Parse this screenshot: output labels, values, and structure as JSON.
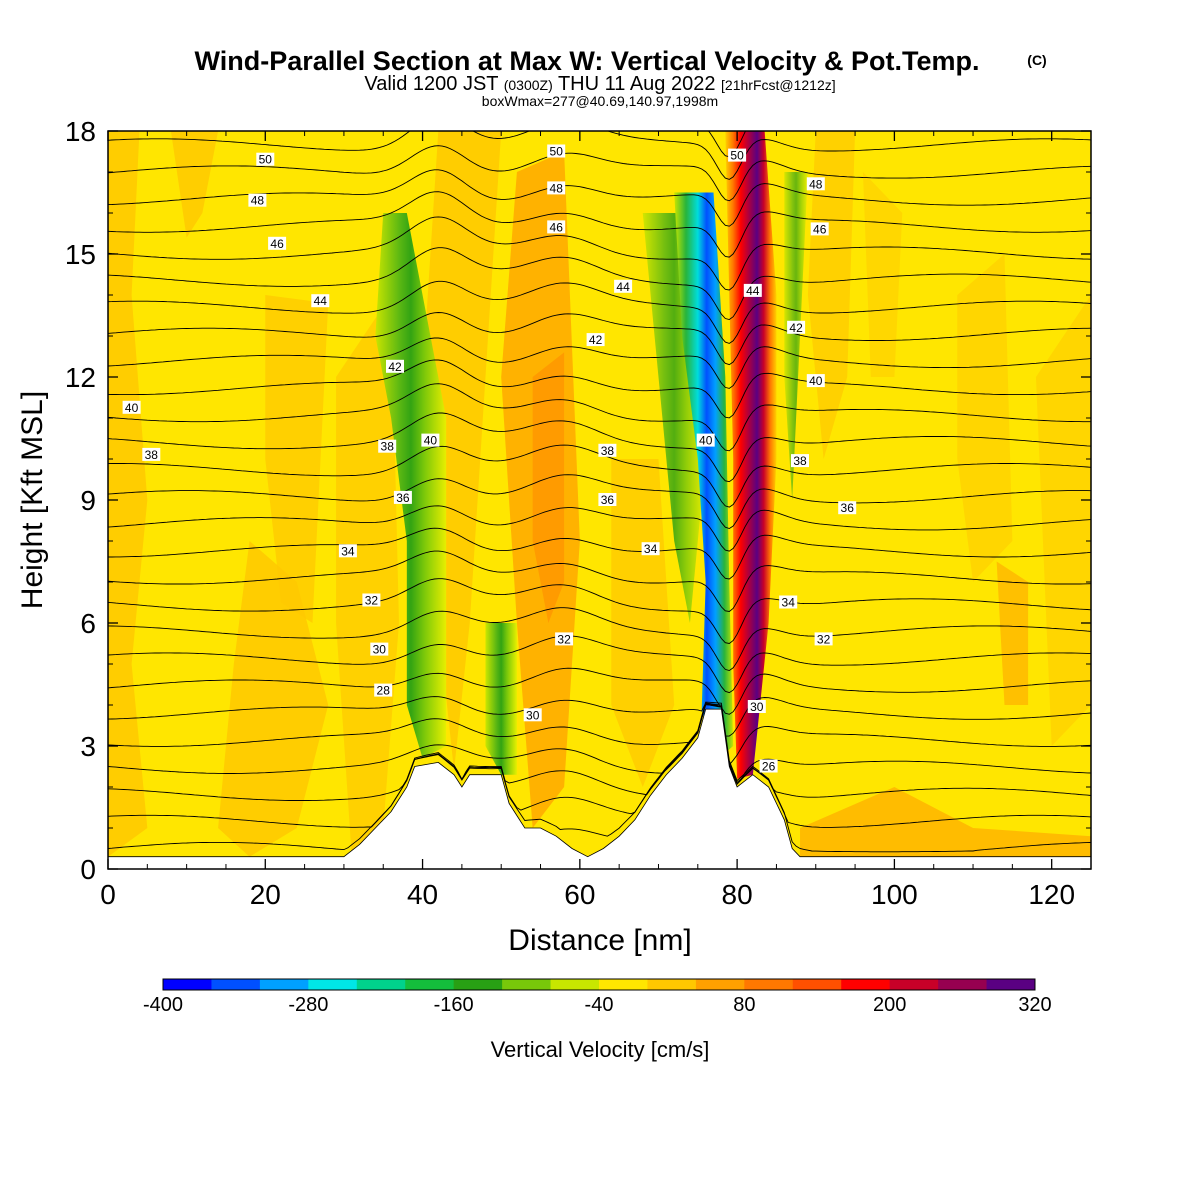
{
  "chart_data": {
    "type": "heatmap",
    "title": "Wind-Parallel Section at Max W: Vertical Velocity & Pot.Temp.",
    "title_tag": "(C)",
    "subtitle_line1": {
      "part1": "Valid 1200 JST",
      "part2": "(0300Z)",
      "part3": "THU 11 Aug 2022",
      "part4": "[21hrFcst@1212z]"
    },
    "subtitle_line2": "boxWmax=277@40.69,140.97,1998m",
    "xlabel": "Distance [nm]",
    "ylabel": "Height [Kft MSL]",
    "xlim": [
      0,
      125
    ],
    "ylim": [
      0,
      18
    ],
    "x_ticks": [
      "0",
      "20",
      "40",
      "60",
      "80",
      "100",
      "120"
    ],
    "y_ticks": [
      "0",
      "3",
      "6",
      "9",
      "12",
      "15",
      "18"
    ],
    "colorbar": {
      "title": "Vertical Velocity [cm/s]",
      "tick_labels": [
        "-400",
        "-280",
        "-160",
        "-40",
        "80",
        "200",
        "320"
      ],
      "range": [
        -400,
        320
      ],
      "colors": [
        "#0000ff",
        "#0050ff",
        "#00a0ff",
        "#00e6e6",
        "#00d28c",
        "#14be3c",
        "#28a014",
        "#78c80a",
        "#c8e600",
        "#ffe600",
        "#ffc800",
        "#ffa000",
        "#ff7800",
        "#ff5000",
        "#ff0000",
        "#c80028",
        "#960050",
        "#5a0082"
      ]
    },
    "terrain": [
      [
        0,
        0.3
      ],
      [
        30,
        0.3
      ],
      [
        32,
        0.6
      ],
      [
        34,
        1.0
      ],
      [
        36,
        1.4
      ],
      [
        38,
        2.0
      ],
      [
        39,
        2.5
      ],
      [
        42,
        2.6
      ],
      [
        44,
        2.3
      ],
      [
        45,
        2.0
      ],
      [
        46,
        2.3
      ],
      [
        50,
        2.3
      ],
      [
        51,
        1.6
      ],
      [
        53,
        1.0
      ],
      [
        55,
        1.0
      ],
      [
        57,
        0.8
      ],
      [
        59,
        0.5
      ],
      [
        61,
        0.3
      ],
      [
        63,
        0.5
      ],
      [
        65,
        0.8
      ],
      [
        67,
        1.2
      ],
      [
        69,
        1.8
      ],
      [
        71,
        2.3
      ],
      [
        73,
        2.7
      ],
      [
        75,
        3.2
      ],
      [
        76,
        3.9
      ],
      [
        78,
        3.9
      ],
      [
        79,
        2.5
      ],
      [
        80,
        2.0
      ],
      [
        82,
        2.3
      ],
      [
        84,
        2.0
      ],
      [
        86,
        1.2
      ],
      [
        87,
        0.5
      ],
      [
        88,
        0.3
      ],
      [
        125,
        0.3
      ]
    ],
    "theta_contours": {
      "levels": [
        24,
        25,
        26,
        27,
        28,
        29,
        30,
        31,
        32,
        33,
        34,
        35,
        36,
        37,
        38,
        39,
        40,
        41,
        42,
        43,
        44,
        45,
        46,
        47,
        48,
        49,
        50,
        51
      ],
      "labels": [
        {
          "text": "50",
          "x": 20,
          "y": 17.3
        },
        {
          "text": "48",
          "x": 19,
          "y": 16.3
        },
        {
          "text": "46",
          "x": 21.5,
          "y": 15.25
        },
        {
          "text": "44",
          "x": 27,
          "y": 13.85
        },
        {
          "text": "40",
          "x": 3,
          "y": 11.25
        },
        {
          "text": "38",
          "x": 5.5,
          "y": 10.1
        },
        {
          "text": "42",
          "x": 36.5,
          "y": 12.25
        },
        {
          "text": "40",
          "x": 41,
          "y": 10.45
        },
        {
          "text": "38",
          "x": 35.5,
          "y": 10.3
        },
        {
          "text": "36",
          "x": 37.5,
          "y": 9.05
        },
        {
          "text": "34",
          "x": 30.5,
          "y": 7.75
        },
        {
          "text": "32",
          "x": 33.5,
          "y": 6.55
        },
        {
          "text": "30",
          "x": 34.5,
          "y": 5.35
        },
        {
          "text": "28",
          "x": 35,
          "y": 4.35
        },
        {
          "text": "50",
          "x": 57,
          "y": 17.5
        },
        {
          "text": "48",
          "x": 57,
          "y": 16.6
        },
        {
          "text": "46",
          "x": 57,
          "y": 15.65
        },
        {
          "text": "44",
          "x": 65.5,
          "y": 14.2
        },
        {
          "text": "42",
          "x": 62,
          "y": 12.9
        },
        {
          "text": "38",
          "x": 63.5,
          "y": 10.2
        },
        {
          "text": "36",
          "x": 63.5,
          "y": 9.0
        },
        {
          "text": "34",
          "x": 69,
          "y": 7.8
        },
        {
          "text": "32",
          "x": 58,
          "y": 5.6
        },
        {
          "text": "30",
          "x": 54,
          "y": 3.75
        },
        {
          "text": "50",
          "x": 80,
          "y": 17.4
        },
        {
          "text": "48",
          "x": 90,
          "y": 16.7
        },
        {
          "text": "46",
          "x": 90.5,
          "y": 15.6
        },
        {
          "text": "44",
          "x": 82,
          "y": 14.1
        },
        {
          "text": "42",
          "x": 87.5,
          "y": 13.2
        },
        {
          "text": "40",
          "x": 90,
          "y": 11.9
        },
        {
          "text": "40",
          "x": 76,
          "y": 10.45
        },
        {
          "text": "38",
          "x": 88,
          "y": 9.95
        },
        {
          "text": "36",
          "x": 94,
          "y": 8.8
        },
        {
          "text": "34",
          "x": 86.5,
          "y": 6.5
        },
        {
          "text": "32",
          "x": 91,
          "y": 5.6
        },
        {
          "text": "30",
          "x": 82.5,
          "y": 3.95
        },
        {
          "text": "26",
          "x": 84,
          "y": 2.5
        }
      ]
    },
    "w_features": [
      {
        "kind": "updraft",
        "x_bottom": 80.5,
        "y_bottom": 2.3,
        "x_top": 80.5,
        "y_top": 18,
        "peak": 320
      },
      {
        "kind": "downdraft",
        "x_bottom": 77.5,
        "y_bottom": 3.0,
        "x_top": 74.5,
        "y_top": 16,
        "peak": -400
      },
      {
        "kind": "downdraft",
        "x_bottom": 41,
        "y_bottom": 2.7,
        "x_top": 38,
        "y_top": 15,
        "peak": -180
      },
      {
        "kind": "downdraft",
        "x_bottom": 51,
        "y_bottom": 2.3,
        "x_top": 50,
        "y_top": 6,
        "peak": -170
      },
      {
        "kind": "updraft",
        "x_bottom": 57,
        "y_bottom": 3,
        "x_top": 52,
        "y_top": 14,
        "peak": 80
      }
    ]
  }
}
